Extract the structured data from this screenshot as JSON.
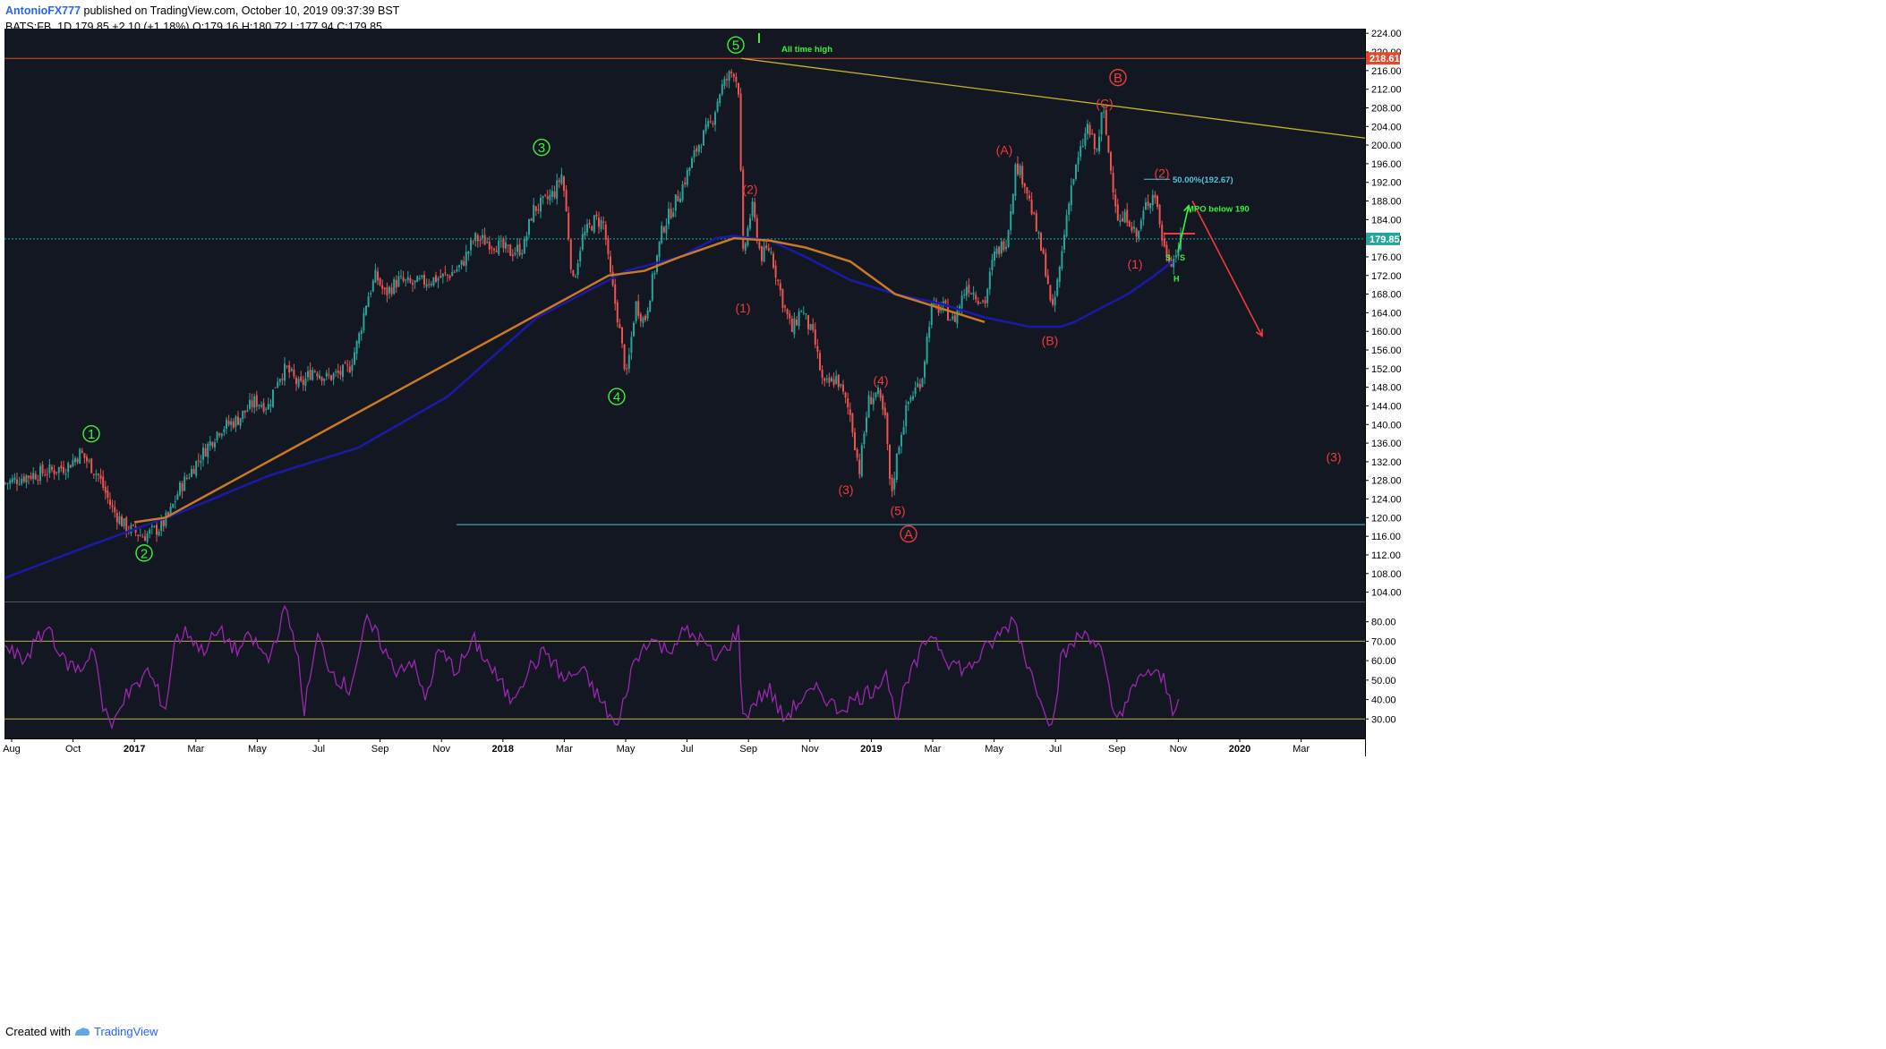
{
  "header": {
    "author": "AntonioFX777",
    "published_text": " published on TradingView.com, October 10, 2019 09:37:39 BST",
    "symbol": "BATS:FB, 1D",
    "last": "179.85",
    "change": "+2.10 (+1.18%)",
    "open": "O:179.16",
    "high": "H:180.72",
    "low": "L:177.94",
    "close": "C:179.85"
  },
  "footer": {
    "created_with": "Created with",
    "brand": "TradingView"
  },
  "colors": {
    "background": "#131722",
    "bull": "#26a69a",
    "bear": "#ef5350",
    "ma_slow": "#1a1aa8",
    "ma_mid": "#c87a26",
    "rsi": "#9c27b0",
    "trendline": "#c9b326",
    "resistance": "#e04b2f",
    "support": "#4fc3d9",
    "green_label": "#3cf03c",
    "red_label": "#ef3b3b"
  },
  "chart_data": {
    "type": "candlestick",
    "symbol": "BATS:FB",
    "timeframe": "1D",
    "price_axis": {
      "range": [
        102,
        225
      ],
      "ticks": [
        "224.00",
        "220.00",
        "216.00",
        "212.00",
        "208.00",
        "204.00",
        "200.00",
        "196.00",
        "192.00",
        "188.00",
        "184.00",
        "180.00",
        "176.00",
        "172.00",
        "168.00",
        "164.00",
        "160.00",
        "156.00",
        "152.00",
        "148.00",
        "144.00",
        "140.00",
        "136.00",
        "132.00",
        "128.00",
        "124.00",
        "120.00",
        "116.00",
        "112.00",
        "108.00",
        "104.00"
      ],
      "highlight_labels": [
        {
          "value": 218.61,
          "text": "218.61",
          "color": "#e04b2f"
        },
        {
          "value": 179.85,
          "text": "179.85",
          "color": "#26a69a"
        }
      ]
    },
    "time_axis": {
      "labels": [
        "Aug",
        "Oct",
        "2017",
        "Mar",
        "May",
        "Jul",
        "Sep",
        "Nov",
        "2018",
        "Mar",
        "May",
        "Jul",
        "Sep",
        "Nov",
        "2019",
        "Mar",
        "May",
        "Jul",
        "Sep",
        "Nov",
        "2020",
        "Mar"
      ]
    },
    "price_path": [
      [
        0,
        127
      ],
      [
        30,
        129
      ],
      [
        55,
        130
      ],
      [
        75,
        131
      ],
      [
        90,
        134
      ],
      [
        110,
        129
      ],
      [
        125,
        122
      ],
      [
        140,
        118
      ],
      [
        160,
        116
      ],
      [
        180,
        118
      ],
      [
        190,
        121
      ],
      [
        200,
        126
      ],
      [
        220,
        132
      ],
      [
        245,
        139
      ],
      [
        265,
        141
      ],
      [
        285,
        145
      ],
      [
        300,
        144
      ],
      [
        310,
        150
      ],
      [
        320,
        152
      ],
      [
        335,
        148
      ],
      [
        350,
        152
      ],
      [
        365,
        150
      ],
      [
        380,
        151
      ],
      [
        390,
        152
      ],
      [
        400,
        158
      ],
      [
        410,
        167
      ],
      [
        420,
        172
      ],
      [
        430,
        168
      ],
      [
        445,
        171
      ],
      [
        460,
        170
      ],
      [
        480,
        171
      ],
      [
        500,
        172
      ],
      [
        515,
        174
      ],
      [
        530,
        180
      ],
      [
        550,
        179
      ],
      [
        570,
        177
      ],
      [
        585,
        178
      ],
      [
        595,
        186
      ],
      [
        610,
        188
      ],
      [
        620,
        190
      ],
      [
        628,
        194
      ],
      [
        635,
        181
      ],
      [
        640,
        170
      ],
      [
        650,
        180
      ],
      [
        665,
        184
      ],
      [
        675,
        183
      ],
      [
        680,
        174
      ],
      [
        690,
        163
      ],
      [
        700,
        150
      ],
      [
        710,
        166
      ],
      [
        720,
        162
      ],
      [
        740,
        182
      ],
      [
        760,
        190
      ],
      [
        780,
        200
      ],
      [
        795,
        205
      ],
      [
        805,
        212
      ],
      [
        815,
        215
      ],
      [
        820,
        216
      ],
      [
        825,
        212
      ],
      [
        830,
        176
      ],
      [
        840,
        187
      ],
      [
        850,
        176
      ],
      [
        860,
        178
      ],
      [
        875,
        166
      ],
      [
        885,
        160
      ],
      [
        895,
        165
      ],
      [
        910,
        158
      ],
      [
        920,
        148
      ],
      [
        935,
        150
      ],
      [
        950,
        142
      ],
      [
        960,
        130
      ],
      [
        970,
        145
      ],
      [
        980,
        147
      ],
      [
        990,
        140
      ],
      [
        995,
        124
      ],
      [
        1005,
        137
      ],
      [
        1015,
        145
      ],
      [
        1030,
        150
      ],
      [
        1040,
        165
      ],
      [
        1055,
        165
      ],
      [
        1065,
        162
      ],
      [
        1080,
        170
      ],
      [
        1100,
        166
      ],
      [
        1110,
        176
      ],
      [
        1125,
        180
      ],
      [
        1135,
        196
      ],
      [
        1145,
        192
      ],
      [
        1160,
        180
      ],
      [
        1170,
        172
      ],
      [
        1175,
        163
      ],
      [
        1185,
        175
      ],
      [
        1195,
        190
      ],
      [
        1205,
        197
      ],
      [
        1215,
        204
      ],
      [
        1225,
        198
      ],
      [
        1232,
        208
      ],
      [
        1240,
        196
      ],
      [
        1250,
        183
      ],
      [
        1260,
        185
      ],
      [
        1270,
        180
      ],
      [
        1280,
        187
      ],
      [
        1290,
        190
      ],
      [
        1300,
        178
      ],
      [
        1310,
        175
      ],
      [
        1320,
        180
      ]
    ],
    "moving_averages": [
      {
        "name": "",
        "color": "#1a1aa8",
        "points": [
          [
            5,
            107
          ],
          [
            100,
            114
          ],
          [
            200,
            121
          ],
          [
            300,
            129
          ],
          [
            400,
            135
          ],
          [
            500,
            146
          ],
          [
            600,
            163
          ],
          [
            700,
            173
          ],
          [
            760,
            176
          ],
          [
            800,
            180
          ],
          [
            820,
            180.5
          ],
          [
            860,
            179.5
          ],
          [
            900,
            176
          ],
          [
            950,
            171
          ],
          [
            1000,
            168
          ],
          [
            1050,
            166
          ],
          [
            1100,
            163
          ],
          [
            1150,
            161
          ],
          [
            1185,
            161
          ],
          [
            1200,
            162
          ],
          [
            1230,
            165
          ],
          [
            1260,
            168
          ],
          [
            1290,
            172
          ],
          [
            1310,
            175
          ]
        ]
      },
      {
        "name": "",
        "color": "#c87a26",
        "points": [
          [
            150,
            119
          ],
          [
            185,
            120
          ],
          [
            680,
            172
          ],
          [
            720,
            173
          ],
          [
            760,
            176
          ],
          [
            820,
            180
          ],
          [
            860,
            179.5
          ],
          [
            900,
            178
          ],
          [
            950,
            175
          ],
          [
            1000,
            168
          ],
          [
            1050,
            165
          ],
          [
            1100,
            162
          ]
        ]
      }
    ],
    "horizontal_lines": [
      {
        "name": "all-time-high",
        "value": 218.61,
        "color": "#e04b2f",
        "from_x": 5
      },
      {
        "name": "current-price",
        "value": 179.85,
        "color": "#26a69a",
        "from_x": 5,
        "dotted": true
      },
      {
        "name": "support",
        "value": 118.5,
        "color": "#4fc3d9",
        "from_x": 510
      },
      {
        "name": "short-red",
        "value": 181,
        "color": "#ef3b3b",
        "from_x": 1300,
        "to_x": 1335
      }
    ],
    "trendline": {
      "from": [
        828,
        218.61
      ],
      "to": [
        1525,
        201.5
      ],
      "color": "#c9b326"
    },
    "annotations": {
      "all_time_high": "All time high",
      "fib": "50.00%(192.67)",
      "mpo": "MPO below 190",
      "s_left": "S",
      "s_right": "S",
      "h": "H"
    },
    "wave_labels": [
      {
        "text": "1",
        "circled": true,
        "color": "#3cf03c",
        "x": 102,
        "price": 138
      },
      {
        "text": "2",
        "circled": true,
        "color": "#3cf03c",
        "x": 161,
        "price": 112.4
      },
      {
        "text": "3",
        "circled": true,
        "color": "#3cf03c",
        "x": 605,
        "price": 199.5
      },
      {
        "text": "4",
        "circled": true,
        "color": "#3cf03c",
        "x": 689,
        "price": 146
      },
      {
        "text": "5",
        "circled": true,
        "color": "#3cf03c",
        "x": 822,
        "price": 221.5
      },
      {
        "text": "(1)",
        "circled": false,
        "color": "#ef3b3b",
        "x": 830,
        "price": 165
      },
      {
        "text": "(2)",
        "circled": false,
        "color": "#ef3b3b",
        "x": 838,
        "price": 190.5
      },
      {
        "text": "(3)",
        "circled": false,
        "color": "#ef3b3b",
        "x": 945,
        "price": 126
      },
      {
        "text": "(4)",
        "circled": false,
        "color": "#ef3b3b",
        "x": 984,
        "price": 149.5
      },
      {
        "text": "(5)",
        "circled": false,
        "color": "#ef3b3b",
        "x": 1003,
        "price": 121.5
      },
      {
        "text": "A",
        "circled": true,
        "color": "#ef3b3b",
        "x": 1015,
        "price": 116.5
      },
      {
        "text": "(A)",
        "circled": false,
        "color": "#ef3b3b",
        "x": 1122,
        "price": 199
      },
      {
        "text": "(B)",
        "circled": false,
        "color": "#ef3b3b",
        "x": 1173,
        "price": 158
      },
      {
        "text": "(C)",
        "circled": false,
        "color": "#ef3b3b",
        "x": 1234,
        "price": 209
      },
      {
        "text": "B",
        "circled": true,
        "color": "#ef3b3b",
        "x": 1249,
        "price": 214.5
      },
      {
        "text": "(2)",
        "circled": false,
        "color": "#ef3b3b",
        "x": 1298,
        "price": 194
      },
      {
        "text": "(1)",
        "circled": false,
        "color": "#ef3b3b",
        "x": 1268,
        "price": 174.5
      },
      {
        "text": "(3)",
        "circled": false,
        "color": "#ef3b3b",
        "x": 1490,
        "price": 133
      }
    ],
    "arrows": [
      {
        "name": "green-arrow",
        "color": "#3cf03c",
        "from": [
          1316,
          177
        ],
        "to": [
          1328,
          187
        ]
      },
      {
        "name": "red-arrow",
        "color": "#ef3b3b",
        "from": [
          1332,
          188
        ],
        "to": [
          1410,
          159
        ]
      }
    ],
    "rsi": {
      "range": [
        20,
        90
      ],
      "ticks": [
        "80.00",
        "70.00",
        "60.00",
        "50.00",
        "40.00",
        "30.00"
      ],
      "levels": [
        70,
        30
      ],
      "path": [
        [
          5,
          67
        ],
        [
          25,
          60
        ],
        [
          55,
          78
        ],
        [
          70,
          60
        ],
        [
          90,
          55
        ],
        [
          105,
          68
        ],
        [
          115,
          35
        ],
        [
          125,
          25
        ],
        [
          135,
          40
        ],
        [
          150,
          45
        ],
        [
          165,
          55
        ],
        [
          185,
          35
        ],
        [
          195,
          70
        ],
        [
          210,
          75
        ],
        [
          225,
          65
        ],
        [
          245,
          75
        ],
        [
          265,
          65
        ],
        [
          280,
          72
        ],
        [
          300,
          60
        ],
        [
          318,
          87
        ],
        [
          330,
          70
        ],
        [
          340,
          35
        ],
        [
          355,
          72
        ],
        [
          370,
          55
        ],
        [
          390,
          45
        ],
        [
          410,
          80
        ],
        [
          425,
          70
        ],
        [
          440,
          55
        ],
        [
          460,
          60
        ],
        [
          475,
          40
        ],
        [
          490,
          65
        ],
        [
          510,
          55
        ],
        [
          530,
          70
        ],
        [
          550,
          55
        ],
        [
          570,
          40
        ],
        [
          590,
          55
        ],
        [
          610,
          65
        ],
        [
          630,
          50
        ],
        [
          650,
          55
        ],
        [
          670,
          40
        ],
        [
          690,
          25
        ],
        [
          705,
          55
        ],
        [
          725,
          72
        ],
        [
          745,
          65
        ],
        [
          765,
          75
        ],
        [
          785,
          70
        ],
        [
          800,
          60
        ],
        [
          825,
          75
        ],
        [
          830,
          30
        ],
        [
          845,
          40
        ],
        [
          860,
          45
        ],
        [
          875,
          30
        ],
        [
          895,
          40
        ],
        [
          915,
          45
        ],
        [
          935,
          35
        ],
        [
          955,
          40
        ],
        [
          975,
          45
        ],
        [
          990,
          55
        ],
        [
          1000,
          30
        ],
        [
          1015,
          50
        ],
        [
          1040,
          75
        ],
        [
          1060,
          60
        ],
        [
          1080,
          55
        ],
        [
          1100,
          65
        ],
        [
          1120,
          75
        ],
        [
          1133,
          82
        ],
        [
          1150,
          55
        ],
        [
          1165,
          40
        ],
        [
          1175,
          25
        ],
        [
          1185,
          60
        ],
        [
          1200,
          70
        ],
        [
          1215,
          75
        ],
        [
          1230,
          65
        ],
        [
          1245,
          30
        ],
        [
          1260,
          40
        ],
        [
          1280,
          55
        ],
        [
          1300,
          50
        ],
        [
          1310,
          35
        ],
        [
          1320,
          45
        ]
      ]
    }
  }
}
